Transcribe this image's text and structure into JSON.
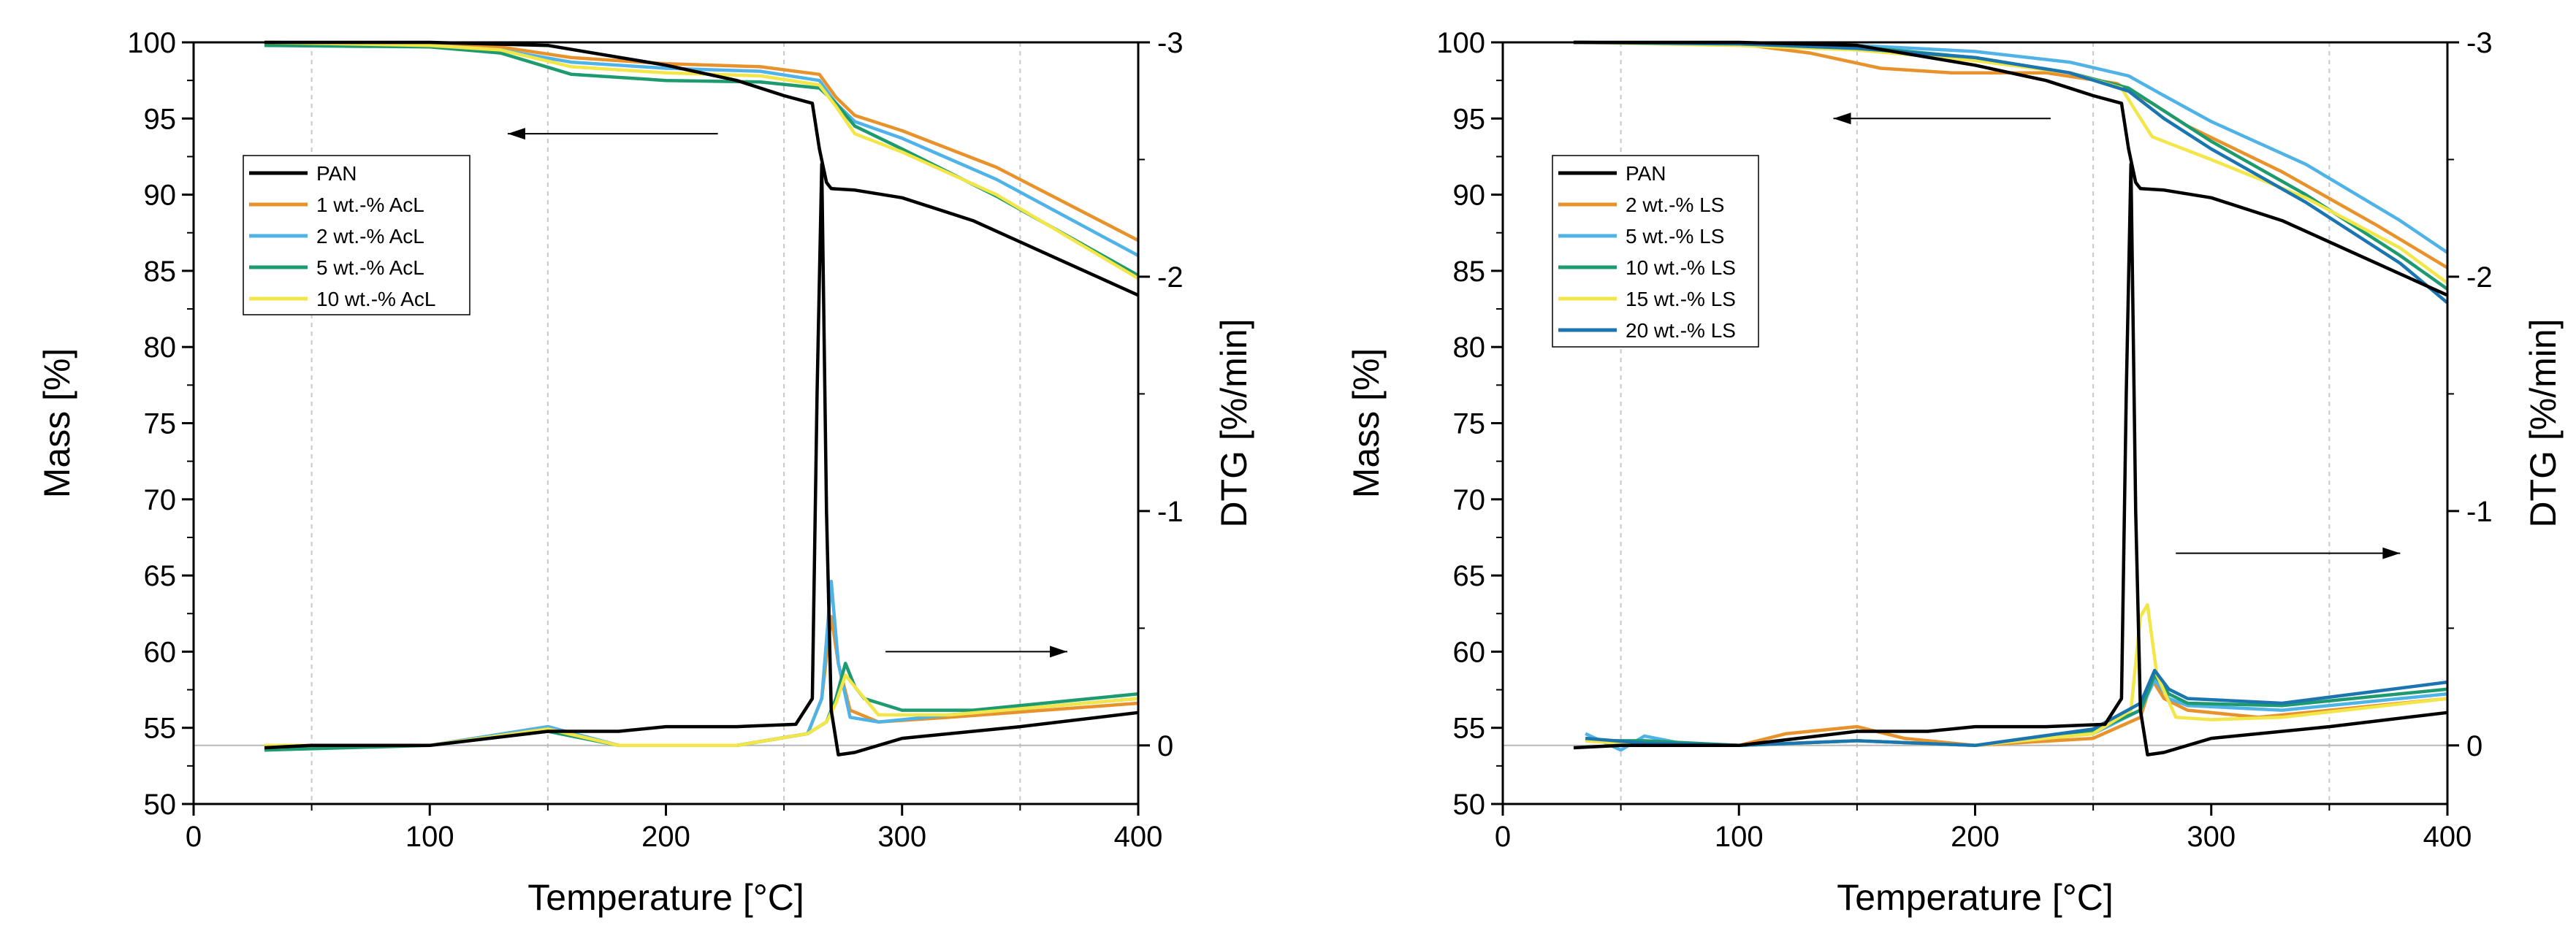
{
  "colors": {
    "PAN": "#000000",
    "orange": "#e8922b",
    "lightblue": "#4fb3e8",
    "green": "#1e9b6e",
    "yellow": "#f2e649",
    "darkblue": "#1b75b0",
    "grid": "#c8c8c8"
  },
  "chart_data": [
    {
      "type": "line",
      "name": "left-panel",
      "xlabel": "Temperature [°C]",
      "ylabel_left": "Mass [%]",
      "ylabel_right": "DTG [%/min]",
      "xlim": [
        0,
        400
      ],
      "ylim_left": [
        50,
        100
      ],
      "ylim_right": [
        0.25,
        -3
      ],
      "xticks": [
        "0",
        "100",
        "200",
        "300",
        "400"
      ],
      "yticks_left": [
        "50",
        "55",
        "60",
        "65",
        "70",
        "75",
        "80",
        "85",
        "90",
        "95",
        "100"
      ],
      "yticks_right": [
        "-3",
        "-2",
        "-1",
        "0"
      ],
      "legend": [
        "PAN",
        "1 wt.-% AcL",
        "2 wt.-% AcL",
        "5 wt.-% AcL",
        "10 wt.-% AcL"
      ],
      "arrows": [
        {
          "direction": "left",
          "x_from": 222,
          "x_to": 133,
          "y": 94
        },
        {
          "direction": "right",
          "x_from": 293,
          "x_to": 370,
          "y": 60
        }
      ],
      "mass_series": [
        {
          "name": "PAN",
          "color_key": "PAN",
          "x": [
            30,
            100,
            150,
            200,
            230,
            250,
            262,
            265,
            268,
            270,
            280,
            300,
            330,
            360,
            400
          ],
          "y": [
            100,
            100,
            99.8,
            98.5,
            97.5,
            96.5,
            96.0,
            93.0,
            90.8,
            90.4,
            90.3,
            89.8,
            88.3,
            86.2,
            83.4
          ]
        },
        {
          "name": "1 wt.-% AcL",
          "color_key": "orange",
          "x": [
            30,
            100,
            130,
            160,
            200,
            240,
            265,
            272,
            280,
            300,
            340,
            400
          ],
          "y": [
            100,
            99.9,
            99.7,
            99.0,
            98.6,
            98.4,
            97.9,
            96.4,
            95.2,
            94.2,
            91.8,
            87.0
          ]
        },
        {
          "name": "2 wt.-% AcL",
          "color_key": "lightblue",
          "x": [
            30,
            100,
            130,
            160,
            200,
            240,
            265,
            272,
            280,
            300,
            340,
            400
          ],
          "y": [
            100,
            99.8,
            99.5,
            98.7,
            98.3,
            98.1,
            97.5,
            96.0,
            94.8,
            93.7,
            91.0,
            86.0
          ]
        },
        {
          "name": "5 wt.-% AcL",
          "color_key": "green",
          "x": [
            30,
            100,
            130,
            160,
            200,
            240,
            265,
            272,
            280,
            300,
            340,
            400
          ],
          "y": [
            99.8,
            99.7,
            99.3,
            97.9,
            97.5,
            97.4,
            97.0,
            96.0,
            94.5,
            93.0,
            89.9,
            84.7
          ]
        },
        {
          "name": "10 wt.-% AcL",
          "color_key": "yellow",
          "x": [
            30,
            100,
            130,
            160,
            200,
            240,
            265,
            272,
            280,
            300,
            340,
            400
          ],
          "y": [
            100,
            99.8,
            99.5,
            98.4,
            98.0,
            97.8,
            97.2,
            95.8,
            94.0,
            92.8,
            90.0,
            84.5
          ]
        }
      ],
      "dtg_series": [
        {
          "name": "PAN",
          "color_key": "PAN",
          "x": [
            30,
            50,
            100,
            150,
            180,
            200,
            230,
            255,
            262,
            264,
            266,
            268,
            270,
            273,
            280,
            300,
            350,
            400
          ],
          "y": [
            0.01,
            0.0,
            0.0,
            -0.06,
            -0.06,
            -0.08,
            -0.08,
            -0.09,
            -0.2,
            -1.5,
            -2.48,
            -1.0,
            -0.15,
            0.04,
            0.03,
            -0.03,
            -0.08,
            -0.14
          ]
        },
        {
          "name": "1 wt.-% AcL",
          "color_key": "orange",
          "x": [
            30,
            100,
            150,
            180,
            230,
            260,
            266,
            270,
            273,
            278,
            290,
            320,
            400
          ],
          "y": [
            0.0,
            0.0,
            -0.08,
            0.0,
            0.0,
            -0.05,
            -0.2,
            -0.55,
            -0.35,
            -0.15,
            -0.1,
            -0.12,
            -0.18
          ]
        },
        {
          "name": "2 wt.-% AcL",
          "color_key": "lightblue",
          "x": [
            30,
            100,
            150,
            180,
            230,
            260,
            266,
            270,
            273,
            278,
            290,
            320,
            400
          ],
          "y": [
            0.0,
            0.0,
            -0.08,
            0.0,
            0.0,
            -0.05,
            -0.2,
            -0.7,
            -0.35,
            -0.12,
            -0.1,
            -0.13,
            -0.2
          ]
        },
        {
          "name": "5 wt.-% AcL",
          "color_key": "green",
          "x": [
            30,
            100,
            150,
            180,
            230,
            260,
            268,
            272,
            276,
            280,
            284,
            300,
            330,
            400
          ],
          "y": [
            0.02,
            0.0,
            -0.06,
            0.0,
            0.0,
            -0.05,
            -0.1,
            -0.2,
            -0.35,
            -0.25,
            -0.2,
            -0.15,
            -0.15,
            -0.22
          ]
        },
        {
          "name": "10 wt.-% AcL",
          "color_key": "yellow",
          "x": [
            30,
            100,
            150,
            180,
            230,
            260,
            268,
            272,
            276,
            280,
            290,
            320,
            400
          ],
          "y": [
            0.0,
            0.0,
            -0.07,
            0.0,
            0.0,
            -0.05,
            -0.1,
            -0.18,
            -0.3,
            -0.25,
            -0.13,
            -0.13,
            -0.2
          ]
        }
      ]
    },
    {
      "type": "line",
      "name": "right-panel",
      "xlabel": "Temperature [°C]",
      "ylabel_left": "Mass [%]",
      "ylabel_right": "DTG [%/min]",
      "xlim": [
        0,
        400
      ],
      "ylim_left": [
        50,
        100
      ],
      "ylim_right": [
        0.25,
        -3
      ],
      "xticks": [
        "0",
        "100",
        "200",
        "300",
        "400"
      ],
      "yticks_left": [
        "50",
        "55",
        "60",
        "65",
        "70",
        "75",
        "80",
        "85",
        "90",
        "95",
        "100"
      ],
      "yticks_right": [
        "-3",
        "-2",
        "-1",
        "0"
      ],
      "legend": [
        "PAN",
        "2 wt.-% LS",
        "5 wt.-% LS",
        "10 wt.-% LS",
        "15 wt.-% LS",
        "20 wt.-% LS"
      ],
      "arrows": [
        {
          "direction": "left",
          "x_from": 232,
          "x_to": 140,
          "y": 95
        },
        {
          "direction": "right",
          "x_from": 285,
          "x_to": 380,
          "y": -0.82
        }
      ],
      "mass_series": [
        {
          "name": "PAN",
          "color_key": "PAN",
          "x": [
            30,
            100,
            150,
            200,
            230,
            250,
            262,
            265,
            268,
            270,
            280,
            300,
            330,
            360,
            400
          ],
          "y": [
            100,
            100,
            99.8,
            98.5,
            97.5,
            96.5,
            96.0,
            93.0,
            90.8,
            90.4,
            90.3,
            89.8,
            88.3,
            86.2,
            83.4
          ]
        },
        {
          "name": "2 wt.-% LS",
          "color_key": "orange",
          "x": [
            30,
            100,
            130,
            160,
            190,
            230,
            260,
            275,
            290,
            330,
            370,
            400
          ],
          "y": [
            100,
            99.9,
            99.3,
            98.3,
            98.0,
            98.0,
            97.3,
            96.0,
            94.5,
            91.5,
            88.0,
            85.2
          ]
        },
        {
          "name": "5 wt.-% LS",
          "color_key": "lightblue",
          "x": [
            30,
            100,
            150,
            200,
            240,
            265,
            280,
            300,
            340,
            380,
            400
          ],
          "y": [
            100,
            99.9,
            99.8,
            99.4,
            98.7,
            97.8,
            96.5,
            94.8,
            92.0,
            88.3,
            86.2
          ]
        },
        {
          "name": "10 wt.-% LS",
          "color_key": "green",
          "x": [
            30,
            100,
            150,
            200,
            240,
            265,
            280,
            300,
            340,
            380,
            400
          ],
          "y": [
            100,
            99.9,
            99.7,
            99.0,
            98.0,
            97.0,
            95.5,
            93.5,
            90.0,
            86.0,
            83.8
          ]
        },
        {
          "name": "15 wt.-% LS",
          "color_key": "yellow",
          "x": [
            30,
            100,
            150,
            200,
            240,
            262,
            268,
            275,
            300,
            340,
            380,
            400
          ],
          "y": [
            100,
            99.8,
            99.5,
            98.8,
            98.0,
            97.0,
            95.5,
            93.8,
            92.3,
            89.8,
            86.5,
            84.2
          ]
        },
        {
          "name": "20 wt.-% LS",
          "color_key": "darkblue",
          "x": [
            30,
            100,
            150,
            200,
            240,
            265,
            280,
            300,
            340,
            380,
            400
          ],
          "y": [
            100,
            99.9,
            99.6,
            99.0,
            98.0,
            96.8,
            95.0,
            93.0,
            89.5,
            85.5,
            82.9
          ]
        }
      ],
      "dtg_series": [
        {
          "name": "PAN",
          "color_key": "PAN",
          "x": [
            30,
            50,
            100,
            150,
            180,
            200,
            230,
            255,
            262,
            264,
            266,
            268,
            270,
            273,
            280,
            300,
            350,
            400
          ],
          "y": [
            0.01,
            0.0,
            0.0,
            -0.06,
            -0.06,
            -0.08,
            -0.08,
            -0.09,
            -0.2,
            -1.5,
            -2.48,
            -1.0,
            -0.15,
            0.04,
            0.03,
            -0.03,
            -0.08,
            -0.14
          ]
        },
        {
          "name": "2 wt.-% LS",
          "color_key": "orange",
          "x": [
            35,
            60,
            100,
            120,
            150,
            170,
            200,
            250,
            270,
            275,
            280,
            290,
            320,
            400
          ],
          "y": [
            -0.03,
            0.0,
            0.0,
            -0.05,
            -0.08,
            -0.03,
            0.0,
            -0.03,
            -0.12,
            -0.28,
            -0.2,
            -0.15,
            -0.12,
            -0.2
          ]
        },
        {
          "name": "5 wt.-% LS",
          "color_key": "lightblue",
          "x": [
            35,
            50,
            60,
            80,
            100,
            150,
            200,
            250,
            270,
            276,
            282,
            290,
            330,
            400
          ],
          "y": [
            -0.05,
            0.02,
            -0.04,
            0.0,
            0.0,
            -0.02,
            0.0,
            -0.05,
            -0.15,
            -0.28,
            -0.2,
            -0.17,
            -0.15,
            -0.22
          ]
        },
        {
          "name": "10 wt.-% LS",
          "color_key": "green",
          "x": [
            35,
            60,
            100,
            150,
            200,
            250,
            270,
            276,
            282,
            290,
            330,
            400
          ],
          "y": [
            -0.02,
            -0.02,
            0.0,
            -0.02,
            0.0,
            -0.06,
            -0.15,
            -0.3,
            -0.22,
            -0.18,
            -0.17,
            -0.24
          ]
        },
        {
          "name": "15 wt.-% LS",
          "color_key": "yellow",
          "x": [
            35,
            60,
            100,
            150,
            200,
            250,
            266,
            270,
            273,
            277,
            285,
            300,
            330,
            400
          ],
          "y": [
            -0.02,
            0.0,
            0.0,
            -0.02,
            0.0,
            -0.05,
            -0.15,
            -0.55,
            -0.6,
            -0.3,
            -0.12,
            -0.11,
            -0.12,
            -0.2
          ]
        },
        {
          "name": "20 wt.-% LS",
          "color_key": "darkblue",
          "x": [
            35,
            60,
            100,
            150,
            200,
            250,
            270,
            276,
            282,
            290,
            330,
            400
          ],
          "y": [
            -0.03,
            -0.01,
            0.0,
            -0.02,
            0.0,
            -0.07,
            -0.18,
            -0.32,
            -0.24,
            -0.2,
            -0.18,
            -0.27
          ]
        }
      ]
    }
  ]
}
